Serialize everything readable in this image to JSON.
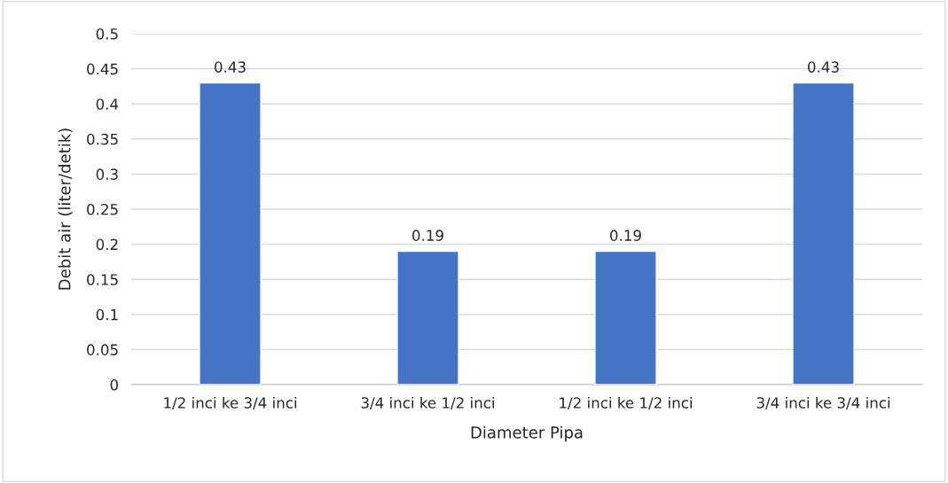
{
  "chart_data": {
    "type": "bar",
    "xlabel": "Diameter Pipa",
    "ylabel": "Debit air (liter/detik)",
    "categories": [
      "1/2 inci ke 3/4 inci",
      "3/4 inci ke 1/2 inci",
      "1/2 inci ke 1/2 inci",
      "3/4 inci ke 3/4 inci"
    ],
    "values": [
      0.43,
      0.19,
      0.19,
      0.43
    ],
    "color": "#4472c4",
    "ylim": [
      0,
      0.5
    ],
    "yticks": [
      0,
      0.05,
      0.1,
      0.15,
      0.2,
      0.25,
      0.3,
      0.35,
      0.4,
      0.45,
      0.5
    ],
    "grid": "y",
    "data_labels": true
  }
}
